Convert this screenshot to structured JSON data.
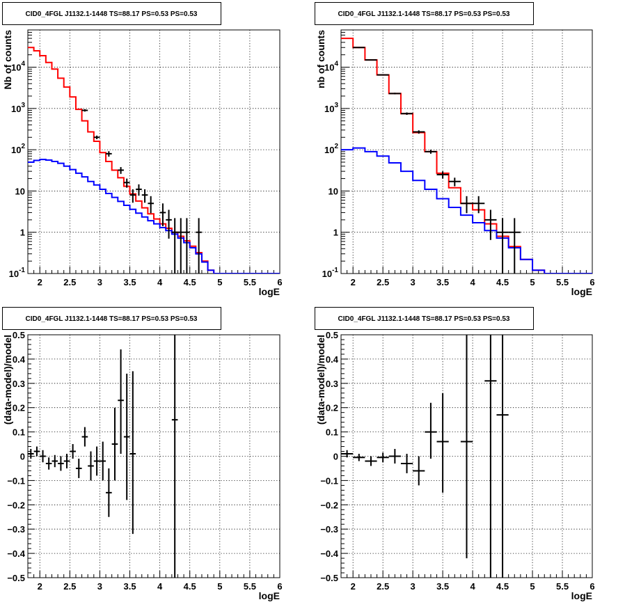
{
  "chart_data": [
    {
      "type": "line",
      "title": "CID0_4FGL J1132.1-1448 TS=88.17 PS=0.53 PS=0.53",
      "xlabel": "logE",
      "ylabel": "Nb of counts",
      "xlim": [
        1.8,
        6.0
      ],
      "ylim": [
        0.1,
        80000
      ],
      "yscale": "log",
      "grid": true,
      "x_ticks": [
        "2",
        "2.5",
        "3",
        "3.5",
        "4",
        "4.5",
        "5",
        "5.5",
        "6"
      ],
      "y_ticks": [
        "10^-1",
        "1",
        "10",
        "10^2",
        "10^3",
        "10^4"
      ],
      "bin_edges": [
        1.8,
        1.9,
        2.0,
        2.1,
        2.2,
        2.3,
        2.4,
        2.5,
        2.6,
        2.7,
        2.8,
        2.9,
        3.0,
        3.1,
        3.2,
        3.3,
        3.4,
        3.5,
        3.6,
        3.7,
        3.8,
        3.9,
        4.0,
        4.1,
        4.2,
        4.3,
        4.4,
        4.5,
        4.6,
        4.7,
        4.8,
        4.9,
        5.0,
        5.1,
        5.2,
        5.3,
        5.4,
        5.5,
        5.6,
        5.7,
        5.8,
        5.9,
        6.0
      ],
      "series": [
        {
          "color": "#ff0000",
          "style": "step",
          "values": [
            30000,
            25000,
            19000,
            13000,
            9000,
            5400,
            3300,
            1900,
            950,
            500,
            270,
            160,
            85,
            52,
            32,
            21,
            13,
            8.5,
            5.7,
            3.9,
            2.8,
            2.1,
            1.6,
            1.25,
            1.0,
            0.8,
            0.62,
            0.46,
            0.32,
            0.2,
            0.12,
            0.1,
            0.1,
            0.1,
            0.1,
            0.1,
            0.1,
            0.1,
            0.1,
            0.1,
            0.1,
            0.1
          ]
        },
        {
          "color": "#0000ff",
          "style": "step",
          "values": [
            50,
            55,
            58,
            56,
            52,
            47,
            40,
            33,
            27,
            22,
            17,
            14,
            11,
            8.7,
            7.0,
            5.6,
            4.5,
            3.6,
            2.9,
            2.35,
            1.9,
            1.6,
            1.3,
            1.1,
            0.9,
            0.72,
            0.56,
            0.42,
            0.3,
            0.19,
            0.12,
            0.1,
            0.1,
            0.1,
            0.1,
            0.1,
            0.1,
            0.1,
            0.1,
            0.1,
            0.1,
            0.1
          ]
        }
      ],
      "points": [
        {
          "x": 2.75,
          "y": 900,
          "xerr": 0.05,
          "ylo": 840,
          "yhi": 960
        },
        {
          "x": 2.95,
          "y": 200,
          "xerr": 0.05,
          "ylo": 180,
          "yhi": 220
        },
        {
          "x": 3.15,
          "y": 80,
          "xerr": 0.05,
          "ylo": 68,
          "yhi": 92
        },
        {
          "x": 3.35,
          "y": 32,
          "xerr": 0.05,
          "ylo": 26,
          "yhi": 38
        },
        {
          "x": 3.45,
          "y": 16,
          "xerr": 0.05,
          "ylo": 12,
          "yhi": 20
        },
        {
          "x": 3.55,
          "y": 8,
          "xerr": 0.05,
          "ylo": 5.2,
          "yhi": 11
        },
        {
          "x": 3.65,
          "y": 11,
          "xerr": 0.05,
          "ylo": 7.7,
          "yhi": 14.5
        },
        {
          "x": 3.75,
          "y": 8,
          "xerr": 0.05,
          "ylo": 5.2,
          "yhi": 11
        },
        {
          "x": 3.85,
          "y": 5,
          "xerr": 0.05,
          "ylo": 2.9,
          "yhi": 7.5
        },
        {
          "x": 4.05,
          "y": 3,
          "xerr": 0.05,
          "ylo": 1.4,
          "yhi": 5
        },
        {
          "x": 4.15,
          "y": 2,
          "xerr": 0.05,
          "ylo": 0.7,
          "yhi": 3.5
        },
        {
          "x": 4.25,
          "y": 1,
          "xerr": 0.05,
          "ylo": 0.1,
          "yhi": 2.2
        },
        {
          "x": 4.35,
          "y": 1,
          "xerr": 0.05,
          "ylo": 0.1,
          "yhi": 2.2
        },
        {
          "x": 4.45,
          "y": 1,
          "xerr": 0.05,
          "ylo": 0.1,
          "yhi": 2.2
        },
        {
          "x": 4.65,
          "y": 1,
          "xerr": 0.05,
          "ylo": 0.1,
          "yhi": 2.2
        }
      ]
    },
    {
      "type": "line",
      "title": "CID0_4FGL J1132.1-1448 TS=88.17 PS=0.53 PS=0.53",
      "xlabel": "logE",
      "ylabel": "nb of counts",
      "xlim": [
        1.8,
        6.0
      ],
      "ylim": [
        0.1,
        80000
      ],
      "yscale": "log",
      "grid": true,
      "x_ticks": [
        "2",
        "2.5",
        "3",
        "3.5",
        "4",
        "4.5",
        "5",
        "5.5",
        "6"
      ],
      "y_ticks": [
        "10^-1",
        "1",
        "10",
        "10^2",
        "10^3",
        "10^4"
      ],
      "bin_edges": [
        1.8,
        2.0,
        2.2,
        2.4,
        2.6,
        2.8,
        3.0,
        3.2,
        3.4,
        3.6,
        3.8,
        4.0,
        4.2,
        4.4,
        4.6,
        4.8,
        5.0,
        5.2,
        5.4,
        5.6,
        5.8,
        6.0
      ],
      "series": [
        {
          "color": "#ff0000",
          "style": "step",
          "values": [
            50000,
            30000,
            15000,
            6500,
            2300,
            750,
            260,
            90,
            27,
            12,
            5,
            3.5,
            1.6,
            0.8,
            0.45,
            0.22,
            0.12,
            0.1,
            0.1,
            0.1,
            0.1
          ]
        },
        {
          "color": "#0000ff",
          "style": "step",
          "values": [
            100,
            110,
            90,
            70,
            48,
            30,
            18,
            11,
            6.5,
            4.0,
            2.6,
            1.7,
            1.1,
            0.72,
            0.42,
            0.22,
            0.12,
            0.1,
            0.1,
            0.1,
            0.1
          ]
        }
      ],
      "points": [
        {
          "x": 2.1,
          "y": 30000,
          "xerr": 0.1,
          "ylo": 29000,
          "yhi": 31000
        },
        {
          "x": 2.3,
          "y": 15000,
          "xerr": 0.1,
          "ylo": 14600,
          "yhi": 15400
        },
        {
          "x": 2.5,
          "y": 6500,
          "xerr": 0.1,
          "ylo": 6300,
          "yhi": 6700
        },
        {
          "x": 2.7,
          "y": 2300,
          "xerr": 0.1,
          "ylo": 2200,
          "yhi": 2400
        },
        {
          "x": 2.9,
          "y": 750,
          "xerr": 0.1,
          "ylo": 700,
          "yhi": 800
        },
        {
          "x": 3.1,
          "y": 270,
          "xerr": 0.1,
          "ylo": 245,
          "yhi": 295
        },
        {
          "x": 3.3,
          "y": 90,
          "xerr": 0.1,
          "ylo": 80,
          "yhi": 100
        },
        {
          "x": 3.5,
          "y": 25,
          "xerr": 0.1,
          "ylo": 20,
          "yhi": 30
        },
        {
          "x": 3.7,
          "y": 17,
          "xerr": 0.1,
          "ylo": 13,
          "yhi": 21
        },
        {
          "x": 3.9,
          "y": 5,
          "xerr": 0.1,
          "ylo": 2.9,
          "yhi": 7.5
        },
        {
          "x": 4.1,
          "y": 5,
          "xerr": 0.1,
          "ylo": 2.9,
          "yhi": 7.5
        },
        {
          "x": 4.3,
          "y": 2,
          "xerr": 0.1,
          "ylo": 0.65,
          "yhi": 3.5
        },
        {
          "x": 4.5,
          "y": 1,
          "xerr": 0.1,
          "ylo": 0.1,
          "yhi": 2.2
        },
        {
          "x": 4.7,
          "y": 1,
          "xerr": 0.1,
          "ylo": 0.1,
          "yhi": 2.2
        }
      ]
    },
    {
      "type": "scatter",
      "title": "CID0_4FGL J1132.1-1448 TS=88.17 PS=0.53 PS=0.53",
      "xlabel": "logE",
      "ylabel": "(data-model)/model",
      "xlim": [
        1.8,
        6.0
      ],
      "ylim": [
        -0.5,
        0.5
      ],
      "grid": true,
      "x_ticks": [
        "2",
        "2.5",
        "3",
        "3.5",
        "4",
        "4.5",
        "5",
        "5.5",
        "6"
      ],
      "y_ticks": [
        "-0.5",
        "-0.4",
        "-0.3",
        "-0.2",
        "-0.1",
        "0",
        "0.1",
        "0.2",
        "0.3",
        "0.4",
        "0.5"
      ],
      "points": [
        {
          "x": 1.85,
          "y": 0.01,
          "xerr": 0.05,
          "ylo": -0.01,
          "yhi": 0.03
        },
        {
          "x": 1.95,
          "y": 0.02,
          "xerr": 0.05,
          "ylo": 0.0,
          "yhi": 0.04
        },
        {
          "x": 2.05,
          "y": 0.0,
          "xerr": 0.05,
          "ylo": -0.025,
          "yhi": 0.025
        },
        {
          "x": 2.15,
          "y": -0.03,
          "xerr": 0.05,
          "ylo": -0.055,
          "yhi": -0.005
        },
        {
          "x": 2.25,
          "y": -0.02,
          "xerr": 0.05,
          "ylo": -0.045,
          "yhi": 0.005
        },
        {
          "x": 2.35,
          "y": -0.03,
          "xerr": 0.05,
          "ylo": -0.06,
          "yhi": 0.0
        },
        {
          "x": 2.45,
          "y": -0.02,
          "xerr": 0.05,
          "ylo": -0.05,
          "yhi": 0.01
        },
        {
          "x": 2.55,
          "y": 0.02,
          "xerr": 0.05,
          "ylo": -0.01,
          "yhi": 0.05
        },
        {
          "x": 2.65,
          "y": -0.05,
          "xerr": 0.05,
          "ylo": -0.09,
          "yhi": -0.01
        },
        {
          "x": 2.75,
          "y": 0.08,
          "xerr": 0.05,
          "ylo": 0.04,
          "yhi": 0.12
        },
        {
          "x": 2.85,
          "y": -0.04,
          "xerr": 0.05,
          "ylo": -0.1,
          "yhi": 0.02
        },
        {
          "x": 2.95,
          "y": -0.02,
          "xerr": 0.05,
          "ylo": -0.08,
          "yhi": 0.04
        },
        {
          "x": 3.05,
          "y": -0.02,
          "xerr": 0.05,
          "ylo": -0.1,
          "yhi": 0.06
        },
        {
          "x": 3.15,
          "y": -0.15,
          "xerr": 0.05,
          "ylo": -0.25,
          "yhi": -0.05
        },
        {
          "x": 3.25,
          "y": 0.05,
          "xerr": 0.05,
          "ylo": -0.1,
          "yhi": 0.2
        },
        {
          "x": 3.35,
          "y": 0.23,
          "xerr": 0.05,
          "ylo": 0.01,
          "yhi": 0.44
        },
        {
          "x": 3.45,
          "y": 0.08,
          "xerr": 0.05,
          "ylo": -0.18,
          "yhi": 0.34
        },
        {
          "x": 3.55,
          "y": 0.01,
          "xerr": 0.05,
          "ylo": -0.32,
          "yhi": 0.35
        },
        {
          "x": 4.25,
          "y": 0.15,
          "xerr": 0.05,
          "ylo": -0.5,
          "yhi": 0.5
        }
      ]
    },
    {
      "type": "scatter",
      "title": "CID0_4FGL J1132.1-1448 TS=88.17 PS=0.53 PS=0.53",
      "xlabel": "logE",
      "ylabel": "(data-model)/model",
      "xlim": [
        1.8,
        6.0
      ],
      "ylim": [
        -0.5,
        0.5
      ],
      "grid": true,
      "x_ticks": [
        "2",
        "2.5",
        "3",
        "3.5",
        "4",
        "4.5",
        "5",
        "5.5",
        "6"
      ],
      "y_ticks": [
        "-0.5",
        "-0.4",
        "-0.3",
        "-0.2",
        "-0.1",
        "0",
        "0.1",
        "0.2",
        "0.3",
        "0.4",
        "0.5"
      ],
      "points": [
        {
          "x": 1.9,
          "y": 0.01,
          "xerr": 0.1,
          "ylo": -0.005,
          "yhi": 0.025
        },
        {
          "x": 2.1,
          "y": -0.005,
          "xerr": 0.1,
          "ylo": -0.02,
          "yhi": 0.01
        },
        {
          "x": 2.3,
          "y": -0.02,
          "xerr": 0.1,
          "ylo": -0.04,
          "yhi": 0.0
        },
        {
          "x": 2.5,
          "y": -0.005,
          "xerr": 0.1,
          "ylo": -0.025,
          "yhi": 0.015
        },
        {
          "x": 2.7,
          "y": 0.0,
          "xerr": 0.1,
          "ylo": -0.03,
          "yhi": 0.03
        },
        {
          "x": 2.9,
          "y": -0.03,
          "xerr": 0.1,
          "ylo": -0.07,
          "yhi": 0.01
        },
        {
          "x": 3.1,
          "y": -0.06,
          "xerr": 0.1,
          "ylo": -0.12,
          "yhi": 0.0
        },
        {
          "x": 3.3,
          "y": 0.1,
          "xerr": 0.1,
          "ylo": -0.01,
          "yhi": 0.22
        },
        {
          "x": 3.5,
          "y": 0.06,
          "xerr": 0.1,
          "ylo": -0.15,
          "yhi": 0.26
        },
        {
          "x": 3.9,
          "y": 0.06,
          "xerr": 0.1,
          "ylo": -0.42,
          "yhi": 0.5
        },
        {
          "x": 4.3,
          "y": 0.31,
          "xerr": 0.1,
          "ylo": -0.5,
          "yhi": 0.5
        },
        {
          "x": 4.5,
          "y": 0.17,
          "xerr": 0.1,
          "ylo": -0.5,
          "yhi": 0.5
        }
      ]
    }
  ]
}
